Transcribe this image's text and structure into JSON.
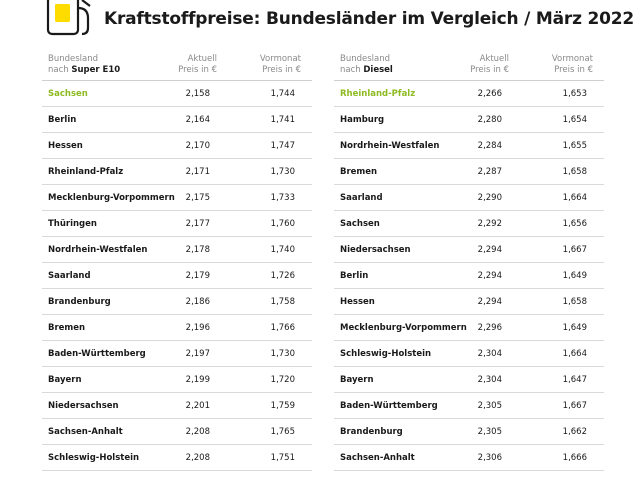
{
  "title": "Kraftstoffpreise: Bundesländer im Vergleich / März 2022",
  "colors": {
    "highlight": "#8dbb21",
    "pump_yellow": "#ffdc00",
    "text": "#1a1a1a",
    "header_gray": "#8a8a8a"
  },
  "icon": "fuel-pump-icon",
  "tables": {
    "e10": {
      "col1_line1": "Bundesland",
      "col1_prefix": "nach ",
      "col1_fuel": "Super E10",
      "col2_line1": "Aktuell",
      "col2_line2": "Preis in €",
      "col3_line1": "Vormonat",
      "col3_line2": "Preis in €",
      "rows": [
        {
          "name": "Sachsen",
          "current": "2,158",
          "previous": "1,744"
        },
        {
          "name": "Berlin",
          "current": "2,164",
          "previous": "1,741"
        },
        {
          "name": "Hessen",
          "current": "2,170",
          "previous": "1,747"
        },
        {
          "name": "Rheinland-Pfalz",
          "current": "2,171",
          "previous": "1,730"
        },
        {
          "name": "Mecklenburg-Vorpommern",
          "current": "2,175",
          "previous": "1,733"
        },
        {
          "name": "Thüringen",
          "current": "2,177",
          "previous": "1,760"
        },
        {
          "name": "Nordrhein-Westfalen",
          "current": "2,178",
          "previous": "1,740"
        },
        {
          "name": "Saarland",
          "current": "2,179",
          "previous": "1,726"
        },
        {
          "name": "Brandenburg",
          "current": "2,186",
          "previous": "1,758"
        },
        {
          "name": "Bremen",
          "current": "2,196",
          "previous": "1,766"
        },
        {
          "name": "Baden-Württemberg",
          "current": "2,197",
          "previous": "1,730"
        },
        {
          "name": "Bayern",
          "current": "2,199",
          "previous": "1,720"
        },
        {
          "name": "Niedersachsen",
          "current": "2,201",
          "previous": "1,759"
        },
        {
          "name": "Sachsen-Anhalt",
          "current": "2,208",
          "previous": "1,765"
        },
        {
          "name": "Schleswig-Holstein",
          "current": "2,208",
          "previous": "1,751"
        }
      ]
    },
    "diesel": {
      "col1_line1": "Bundesland",
      "col1_prefix": "nach ",
      "col1_fuel": "Diesel",
      "col2_line1": "Aktuell",
      "col2_line2": "Preis in €",
      "col3_line1": "Vormonat",
      "col3_line2": "Preis in €",
      "rows": [
        {
          "name": "Rheinland-Pfalz",
          "current": "2,266",
          "previous": "1,653"
        },
        {
          "name": "Hamburg",
          "current": "2,280",
          "previous": "1,654"
        },
        {
          "name": "Nordrhein-Westfalen",
          "current": "2,284",
          "previous": "1,655"
        },
        {
          "name": "Bremen",
          "current": "2,287",
          "previous": "1,658"
        },
        {
          "name": "Saarland",
          "current": "2,290",
          "previous": "1,664"
        },
        {
          "name": "Sachsen",
          "current": "2,292",
          "previous": "1,656"
        },
        {
          "name": "Niedersachsen",
          "current": "2,294",
          "previous": "1,667"
        },
        {
          "name": "Berlin",
          "current": "2,294",
          "previous": "1,649"
        },
        {
          "name": "Hessen",
          "current": "2,294",
          "previous": "1,658"
        },
        {
          "name": "Mecklenburg-Vorpommern",
          "current": "2,296",
          "previous": "1,649"
        },
        {
          "name": "Schleswig-Holstein",
          "current": "2,304",
          "previous": "1,664"
        },
        {
          "name": "Bayern",
          "current": "2,304",
          "previous": "1,647"
        },
        {
          "name": "Baden-Württemberg",
          "current": "2,305",
          "previous": "1,667"
        },
        {
          "name": "Brandenburg",
          "current": "2,305",
          "previous": "1,662"
        },
        {
          "name": "Sachsen-Anhalt",
          "current": "2,306",
          "previous": "1,666"
        }
      ]
    }
  }
}
